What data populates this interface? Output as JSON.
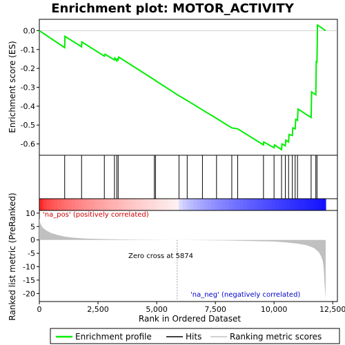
{
  "chart_data": {
    "type": "line",
    "title": "Enrichment plot: MOTOR_ACTIVITY",
    "xlabel": "Rank in Ordered Dataset",
    "ylabel_top": "Enrichment score (ES)",
    "ylabel_bottom": "Ranked list metric (PreRanked)",
    "xlim": [
      0,
      12700
    ],
    "x_ticks": [
      0,
      2500,
      5000,
      7500,
      10000,
      12500
    ],
    "x_tick_labels": [
      "0",
      "2,500",
      "5,000",
      "7,500",
      "10,000",
      "12,500"
    ],
    "es_ylim": [
      -0.66,
      0.06
    ],
    "es_ticks": [
      0.0,
      -0.1,
      -0.2,
      -0.3,
      -0.4,
      -0.5,
      -0.6
    ],
    "es_tick_labels": [
      "0.0",
      "-0.1",
      "-0.2",
      "-0.3",
      "-0.4",
      "-0.5",
      "-0.6"
    ],
    "metric_ylim": [
      -23,
      11
    ],
    "metric_ticks": [
      10,
      5,
      0,
      -5,
      -10,
      -15,
      -20
    ],
    "metric_tick_labels": [
      "10",
      "5",
      "0",
      "-5",
      "-10",
      "-15",
      "-20"
    ],
    "es_curve": {
      "name": "Enrichment profile",
      "color": "#00ee00",
      "x": [
        0,
        1080,
        1090,
        1800,
        1810,
        2770,
        2800,
        3200,
        3220,
        3300,
        3320,
        3360,
        3380,
        4900,
        4950,
        5950,
        6300,
        6950,
        7550,
        8200,
        8450,
        9550,
        9560,
        10000,
        10020,
        10320,
        10340,
        10480,
        10500,
        10620,
        10640,
        10780,
        10800,
        10900,
        10920,
        11000,
        11020,
        11580,
        11600,
        11780,
        11800,
        11830,
        11850,
        12200
      ],
      "y": [
        0.0,
        -0.09,
        -0.03,
        -0.085,
        -0.06,
        -0.135,
        -0.125,
        -0.155,
        -0.145,
        -0.16,
        -0.15,
        -0.155,
        -0.14,
        -0.26,
        -0.265,
        -0.345,
        -0.37,
        -0.42,
        -0.465,
        -0.515,
        -0.52,
        -0.605,
        -0.59,
        -0.62,
        -0.605,
        -0.63,
        -0.6,
        -0.61,
        -0.58,
        -0.59,
        -0.55,
        -0.555,
        -0.515,
        -0.52,
        -0.47,
        -0.475,
        -0.415,
        -0.46,
        -0.325,
        -0.34,
        -0.16,
        -0.17,
        0.03,
        0.0
      ]
    },
    "hits": {
      "name": "Hits",
      "x": [
        1080,
        1800,
        2770,
        3200,
        3300,
        3360,
        4900,
        4950,
        5950,
        6300,
        6950,
        7550,
        8200,
        8450,
        9550,
        10000,
        10320,
        10480,
        10620,
        10780,
        10900,
        11000,
        11580,
        11780,
        11830
      ]
    },
    "metric": {
      "name": "Ranking metric scores",
      "zero_cross": 5874,
      "x": [
        0,
        50,
        150,
        300,
        500,
        800,
        1100,
        1500,
        2000,
        2800,
        4000,
        5874,
        7000,
        8000,
        9000,
        10000,
        10500,
        11000,
        11400,
        11700,
        11900,
        12000,
        12080,
        12120,
        12150,
        12200
      ],
      "y": [
        8,
        6,
        4.5,
        3.5,
        2.6,
        1.8,
        1.2,
        0.8,
        0.5,
        0.3,
        0.1,
        0.0,
        -0.1,
        -0.2,
        -0.4,
        -0.6,
        -0.9,
        -1.4,
        -2.0,
        -3.0,
        -4.5,
        -6.0,
        -8.0,
        -11.0,
        -16.0,
        -22.0
      ]
    },
    "annotations": {
      "pos_label": "'na_pos' (positively correlated)",
      "neg_label": "'na_neg' (negatively correlated)",
      "zero_cross_label": "Zero cross at 5874"
    },
    "legend": [
      "Enrichment profile",
      "Hits",
      "Ranking metric scores"
    ]
  }
}
